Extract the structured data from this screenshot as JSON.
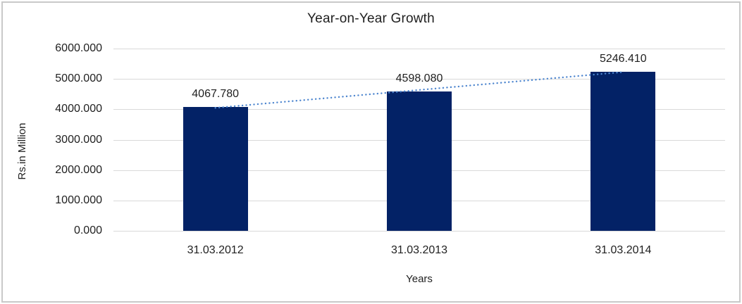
{
  "frame": {
    "border_color": "#c9c9c9",
    "background_color": "#ffffff"
  },
  "chart_data": {
    "type": "bar",
    "title": "Year-on-Year Growth",
    "xlabel": "Years",
    "ylabel": "Rs.in Million",
    "categories": [
      "31.03.2012",
      "31.03.2013",
      "31.03.2014"
    ],
    "values": [
      4067.78,
      4598.08,
      5246.41
    ],
    "value_labels": [
      "4067.780",
      "4598.080",
      "5246.410"
    ],
    "ylim": [
      0,
      6000
    ],
    "ytick_step": 1000,
    "ytick_labels": [
      "0.000",
      "1000.000",
      "2000.000",
      "3000.000",
      "4000.000",
      "5000.000",
      "6000.000"
    ],
    "grid": true,
    "legend": false,
    "bar_color": "#032266",
    "gridline_color": "#d9d9d9",
    "text_color": "#1f1f1f",
    "trendline": {
      "type": "linear",
      "style": "dotted",
      "color": "#4e86cf"
    }
  }
}
